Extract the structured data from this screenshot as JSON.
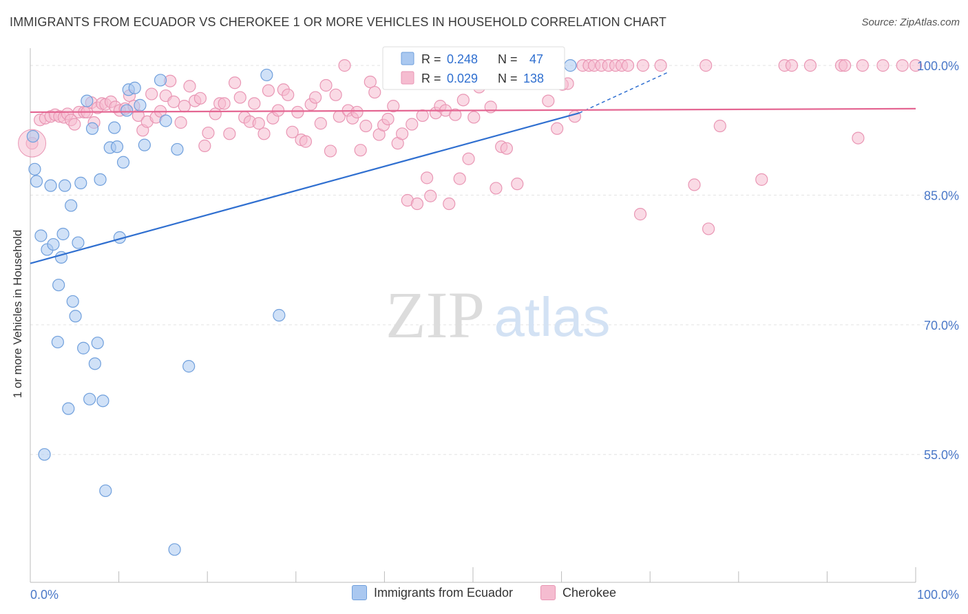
{
  "header": {
    "title": "IMMIGRANTS FROM ECUADOR VS CHEROKEE 1 OR MORE VEHICLES IN HOUSEHOLD CORRELATION CHART",
    "source": "Source: ZipAtlas.com"
  },
  "watermark": {
    "zip": "ZIP",
    "atlas": "atlas"
  },
  "colors": {
    "blue_fill": "#aac8f0",
    "blue_stroke": "#6f9fdc",
    "blue_line": "#2f6fd0",
    "pink_fill": "#f5bcd0",
    "pink_stroke": "#e996b4",
    "pink_line": "#e46692",
    "axis_label": "#4a78c8",
    "grid": "#e4e4e4"
  },
  "stats_box": {
    "rows": [
      {
        "r_label": "R =",
        "r_value": "0.248",
        "n_label": "N =",
        "n_value": "47"
      },
      {
        "r_label": "R =",
        "r_value": "0.029",
        "n_label": "N =",
        "n_value": "138"
      }
    ]
  },
  "legend": {
    "items": [
      "Immigrants from Ecuador",
      "Cherokee"
    ]
  },
  "chart_data": {
    "type": "scatter",
    "title": "IMMIGRANTS FROM ECUADOR VS CHEROKEE 1 OR MORE VEHICLES IN HOUSEHOLD CORRELATION CHART",
    "xlabel": "",
    "ylabel": "1 or more Vehicles in Household",
    "x_tick_labels": [
      "0.0%",
      "100.0%"
    ],
    "y_tick_labels": [
      "100.0%",
      "85.0%",
      "70.0%",
      "55.0%"
    ],
    "y_ticks": [
      100,
      85,
      70,
      55
    ],
    "xlim": [
      0,
      100
    ],
    "ylim": [
      41,
      102
    ],
    "grid": true,
    "legend_position": "bottom",
    "series": [
      {
        "name": "Immigrants from Ecuador",
        "color": "#aac8f0",
        "trend": {
          "x": [
            0,
            62,
            72
          ],
          "y": [
            77.1,
            94.5,
            99.2
          ]
        },
        "points": [
          [
            0.3,
            91.8
          ],
          [
            0.5,
            88.0
          ],
          [
            0.7,
            86.6
          ],
          [
            1.2,
            80.3
          ],
          [
            1.6,
            55.0
          ],
          [
            1.9,
            78.7
          ],
          [
            2.3,
            86.1
          ],
          [
            2.6,
            79.3
          ],
          [
            3.1,
            68.0
          ],
          [
            3.2,
            74.6
          ],
          [
            3.5,
            77.8
          ],
          [
            3.7,
            80.5
          ],
          [
            3.9,
            86.1
          ],
          [
            4.3,
            60.3
          ],
          [
            4.6,
            83.8
          ],
          [
            4.8,
            72.7
          ],
          [
            5.1,
            71.0
          ],
          [
            5.4,
            79.5
          ],
          [
            5.7,
            86.4
          ],
          [
            6.0,
            67.3
          ],
          [
            6.4,
            95.9
          ],
          [
            6.7,
            61.4
          ],
          [
            7.0,
            92.7
          ],
          [
            7.3,
            65.5
          ],
          [
            7.6,
            67.9
          ],
          [
            7.9,
            86.8
          ],
          [
            8.2,
            61.2
          ],
          [
            8.5,
            50.8
          ],
          [
            9.0,
            90.5
          ],
          [
            9.5,
            92.8
          ],
          [
            9.8,
            90.6
          ],
          [
            10.1,
            80.1
          ],
          [
            10.5,
            88.8
          ],
          [
            10.9,
            94.8
          ],
          [
            11.1,
            97.2
          ],
          [
            11.8,
            97.4
          ],
          [
            12.4,
            95.4
          ],
          [
            12.9,
            90.8
          ],
          [
            14.7,
            98.3
          ],
          [
            15.3,
            93.6
          ],
          [
            16.3,
            44.0
          ],
          [
            16.6,
            90.3
          ],
          [
            17.9,
            65.2
          ],
          [
            26.7,
            98.9
          ],
          [
            28.1,
            71.1
          ],
          [
            56.5,
            100.0
          ],
          [
            61.0,
            100.0
          ]
        ]
      },
      {
        "name": "Cherokee",
        "color": "#f5bcd0",
        "trend": {
          "x": [
            0,
            100
          ],
          "y": [
            94.6,
            95.0
          ]
        },
        "points": [
          [
            0.2,
            91.0
          ],
          [
            1.1,
            93.7
          ],
          [
            1.7,
            93.9
          ],
          [
            2.3,
            94.1
          ],
          [
            2.8,
            94.3
          ],
          [
            3.3,
            94.1
          ],
          [
            3.8,
            94.0
          ],
          [
            4.2,
            94.4
          ],
          [
            4.6,
            93.7
          ],
          [
            5.0,
            93.2
          ],
          [
            5.5,
            94.6
          ],
          [
            6.1,
            94.6
          ],
          [
            6.4,
            94.6
          ],
          [
            6.9,
            95.7
          ],
          [
            7.2,
            93.4
          ],
          [
            7.6,
            95.1
          ],
          [
            8.1,
            95.6
          ],
          [
            8.5,
            95.5
          ],
          [
            9.1,
            95.8
          ],
          [
            9.6,
            95.2
          ],
          [
            10.1,
            94.8
          ],
          [
            10.7,
            95.0
          ],
          [
            11.2,
            96.5
          ],
          [
            11.7,
            95.3
          ],
          [
            12.2,
            94.2
          ],
          [
            12.7,
            92.5
          ],
          [
            13.2,
            93.5
          ],
          [
            13.7,
            96.7
          ],
          [
            14.2,
            94.0
          ],
          [
            14.7,
            94.7
          ],
          [
            15.3,
            96.5
          ],
          [
            15.8,
            98.2
          ],
          [
            16.2,
            95.8
          ],
          [
            17.0,
            93.4
          ],
          [
            17.4,
            95.3
          ],
          [
            18.0,
            97.6
          ],
          [
            18.6,
            95.9
          ],
          [
            19.2,
            96.2
          ],
          [
            19.7,
            90.7
          ],
          [
            20.1,
            92.2
          ],
          [
            20.9,
            94.4
          ],
          [
            21.4,
            95.6
          ],
          [
            21.9,
            95.6
          ],
          [
            22.5,
            92.1
          ],
          [
            23.1,
            98.0
          ],
          [
            23.7,
            96.3
          ],
          [
            24.2,
            94.0
          ],
          [
            24.8,
            93.5
          ],
          [
            25.3,
            95.6
          ],
          [
            25.8,
            93.3
          ],
          [
            26.4,
            92.1
          ],
          [
            26.9,
            97.1
          ],
          [
            27.4,
            93.9
          ],
          [
            28.0,
            94.8
          ],
          [
            28.6,
            97.2
          ],
          [
            29.1,
            96.6
          ],
          [
            29.6,
            92.3
          ],
          [
            30.2,
            94.6
          ],
          [
            30.6,
            91.4
          ],
          [
            31.1,
            91.2
          ],
          [
            31.7,
            95.5
          ],
          [
            32.2,
            96.3
          ],
          [
            32.8,
            93.3
          ],
          [
            33.4,
            97.7
          ],
          [
            33.9,
            90.1
          ],
          [
            34.5,
            96.6
          ],
          [
            34.9,
            94.1
          ],
          [
            35.5,
            100.0
          ],
          [
            35.9,
            94.8
          ],
          [
            36.4,
            93.9
          ],
          [
            36.9,
            94.6
          ],
          [
            37.3,
            90.2
          ],
          [
            37.9,
            93.0
          ],
          [
            38.4,
            98.1
          ],
          [
            38.9,
            96.9
          ],
          [
            39.4,
            92.0
          ],
          [
            39.9,
            93.1
          ],
          [
            40.4,
            93.8
          ],
          [
            41.0,
            95.3
          ],
          [
            41.5,
            91.0
          ],
          [
            42.0,
            92.1
          ],
          [
            42.6,
            84.4
          ],
          [
            43.1,
            93.2
          ],
          [
            43.7,
            84.0
          ],
          [
            44.3,
            94.2
          ],
          [
            44.8,
            87.0
          ],
          [
            45.2,
            84.9
          ],
          [
            45.8,
            94.5
          ],
          [
            46.3,
            95.3
          ],
          [
            46.9,
            94.8
          ],
          [
            47.3,
            84.0
          ],
          [
            48.0,
            94.3
          ],
          [
            48.5,
            86.9
          ],
          [
            48.9,
            96.0
          ],
          [
            49.5,
            89.2
          ],
          [
            50.1,
            94.0
          ],
          [
            50.7,
            97.5
          ],
          [
            51.4,
            100.0
          ],
          [
            52.0,
            95.2
          ],
          [
            52.6,
            85.8
          ],
          [
            53.2,
            90.6
          ],
          [
            53.8,
            90.4
          ],
          [
            54.7,
            100.0
          ],
          [
            55.0,
            86.3
          ],
          [
            56.6,
            100.0
          ],
          [
            57.8,
            100.0
          ],
          [
            58.5,
            95.9
          ],
          [
            59.0,
            100.0
          ],
          [
            59.5,
            92.7
          ],
          [
            60.1,
            97.8
          ],
          [
            60.7,
            97.9
          ],
          [
            61.5,
            94.1
          ],
          [
            62.4,
            100.0
          ],
          [
            63.1,
            100.0
          ],
          [
            63.7,
            100.0
          ],
          [
            64.5,
            100.0
          ],
          [
            65.3,
            100.0
          ],
          [
            66.1,
            100.0
          ],
          [
            66.8,
            100.0
          ],
          [
            67.5,
            100.0
          ],
          [
            68.9,
            82.8
          ],
          [
            69.2,
            100.0
          ],
          [
            71.2,
            100.0
          ],
          [
            75.0,
            86.2
          ],
          [
            76.3,
            100.0
          ],
          [
            76.6,
            81.1
          ],
          [
            77.9,
            93.0
          ],
          [
            82.6,
            86.8
          ],
          [
            85.2,
            100.0
          ],
          [
            86.0,
            100.0
          ],
          [
            88.1,
            100.0
          ],
          [
            91.6,
            100.0
          ],
          [
            92.0,
            100.0
          ],
          [
            93.5,
            91.6
          ],
          [
            94.0,
            100.0
          ],
          [
            96.3,
            100.0
          ],
          [
            98.5,
            100.0
          ],
          [
            100.0,
            100.0
          ]
        ]
      }
    ]
  }
}
